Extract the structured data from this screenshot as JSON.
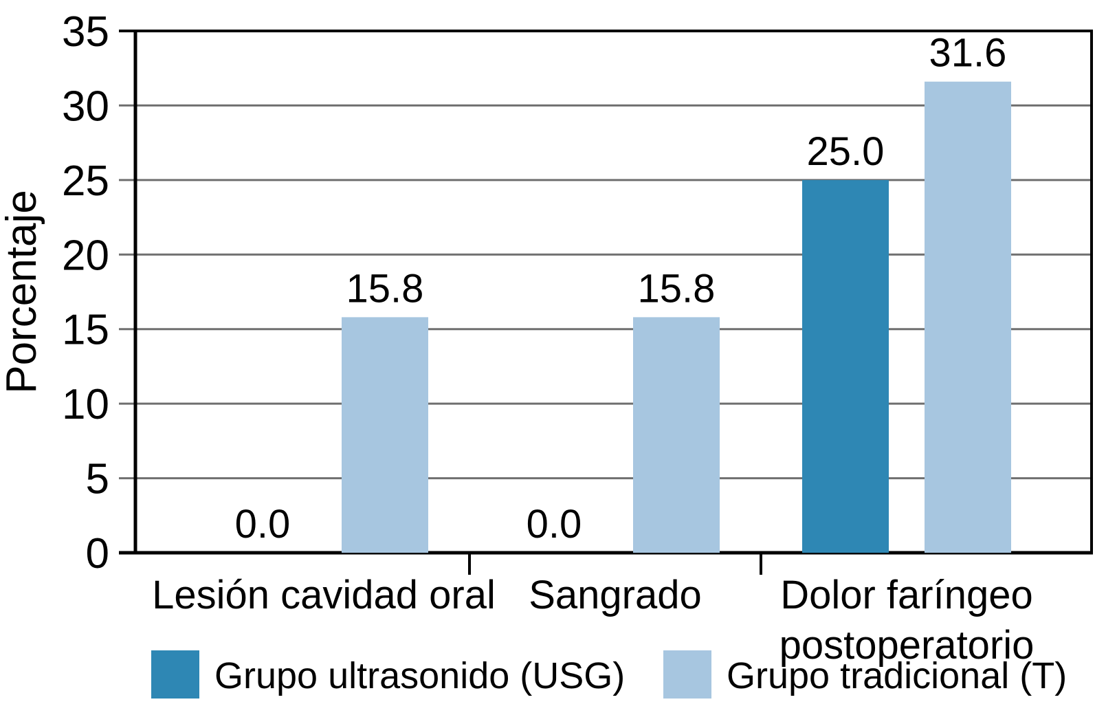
{
  "chart_data": {
    "type": "bar",
    "title": "",
    "categories": [
      "Lesión cavidad oral",
      "Sangrado",
      "Dolor faríngeo\npostoperatorio"
    ],
    "series": [
      {
        "name": "Grupo ultrasonido (USG)",
        "color": "#2E87B4",
        "values": [
          0.0,
          0.0,
          25.0
        ]
      },
      {
        "name": "Grupo tradicional (T)",
        "color": "#A7C6E0",
        "values": [
          15.8,
          15.8,
          31.6
        ]
      }
    ],
    "value_label_format": "one_decimal",
    "ylabel": "Porcentaje",
    "xlabel": "",
    "ylim": [
      0,
      35
    ],
    "yticks": [
      0,
      5,
      10,
      15,
      20,
      25,
      30,
      35
    ],
    "grid": "horizontal",
    "legend_position": "bottom"
  },
  "colors": {
    "background": "#ffffff",
    "axis_frame": "#000000",
    "gridline": "#6F6F6F",
    "text": "#000000",
    "series_usg": "#2E87B4",
    "series_traditional": "#A7C6E0"
  }
}
